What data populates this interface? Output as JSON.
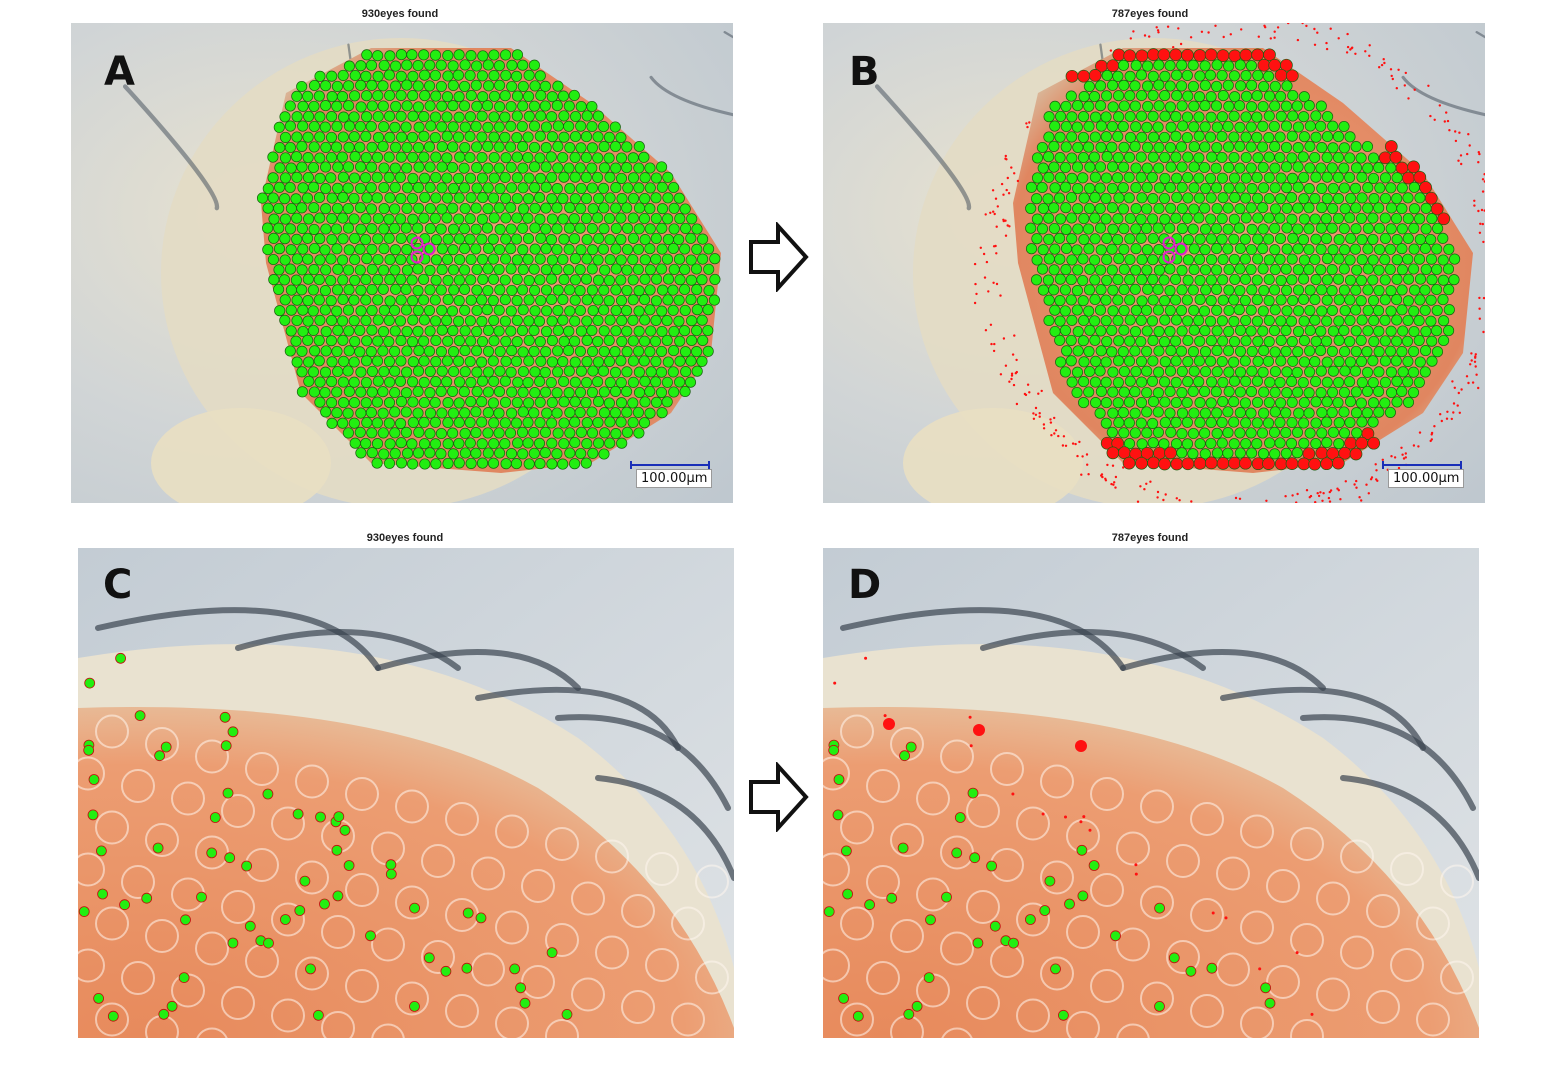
{
  "panels": {
    "A": {
      "letter": "A",
      "title": "930eyes found",
      "scale_label": "100.00µm"
    },
    "B": {
      "letter": "B",
      "title": "787eyes found",
      "scale_label": "100.00µm"
    },
    "C": {
      "letter": "C",
      "title": "930eyes found"
    },
    "D": {
      "letter": "D",
      "title": "787eyes found"
    }
  },
  "colors": {
    "detected_ommatidium": "#22ee11",
    "removed_marker": "#ff1111",
    "center_marker": "#dd22cc",
    "eye_tissue": "#e8946a",
    "background": "#c9d0d6",
    "scale_bar": "#1a2fb8"
  },
  "icons": [
    "arrow-right-icon",
    "arrow-right-icon"
  ]
}
